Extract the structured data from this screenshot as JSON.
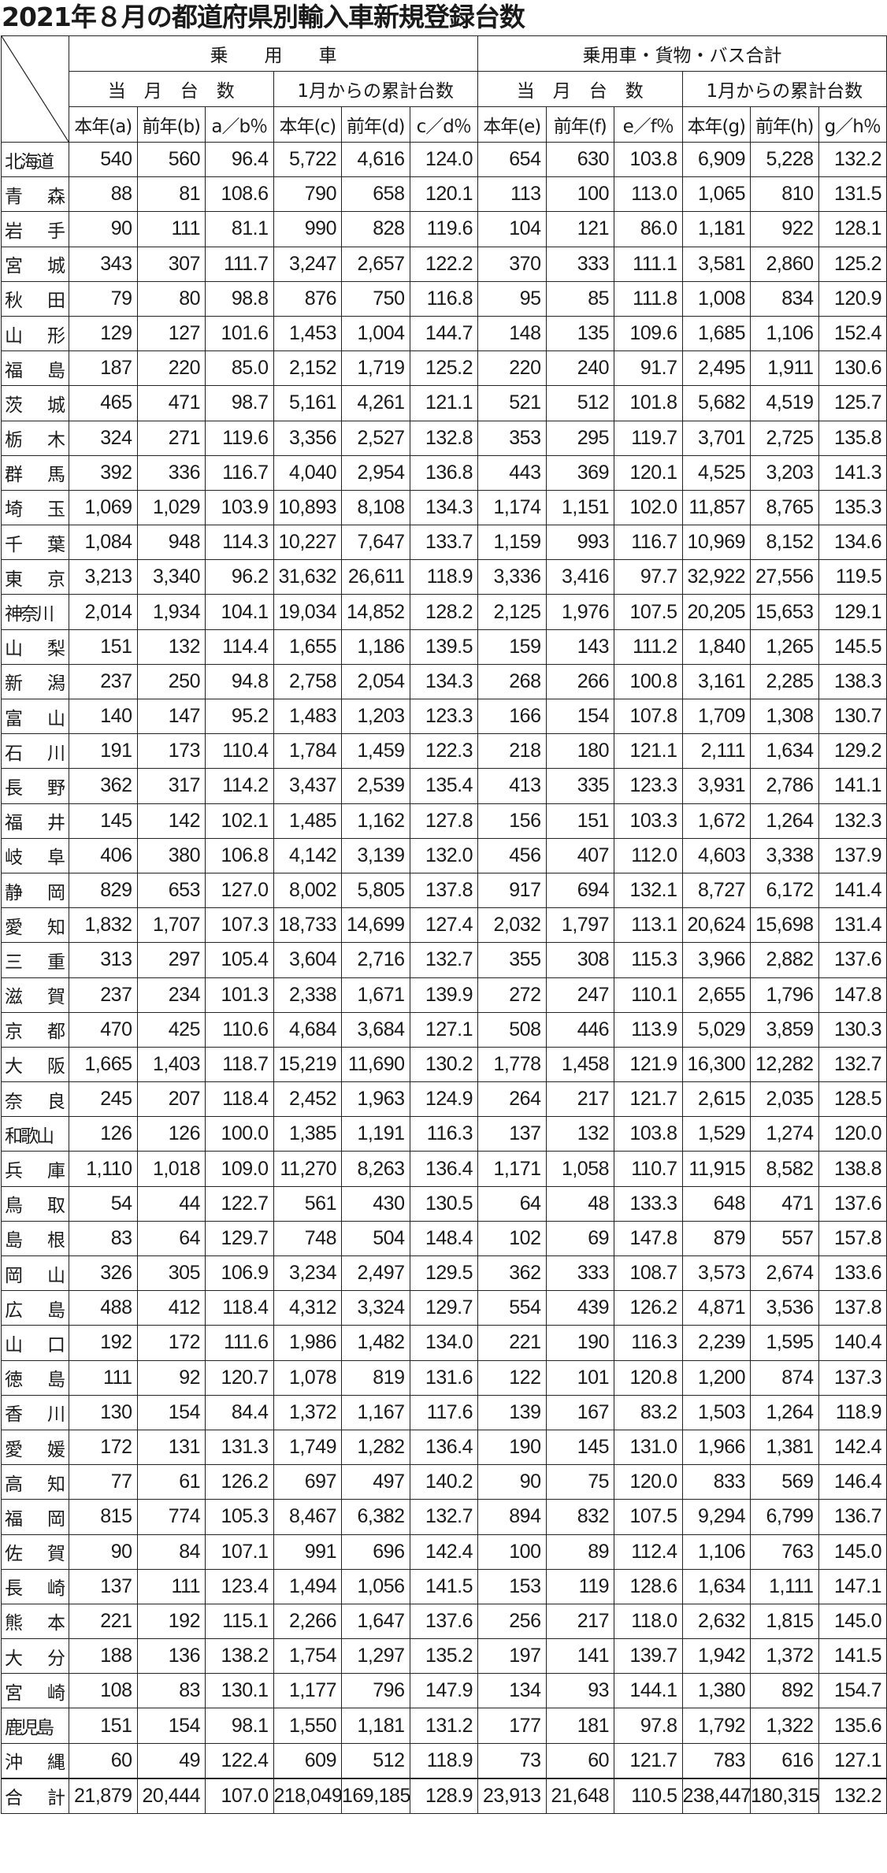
{
  "title": "2021年８月の都道府県別輸入車新規登録台数",
  "header": {
    "group1": "乗　　用　　車",
    "group2": "乗用車・貨物・バス合計",
    "sub_month": "当　月　台　数",
    "sub_cum": "1月からの累計台数",
    "columns": [
      "本年(a)",
      "前年(b)",
      "a／b％",
      "本年(c)",
      "前年(d)",
      "c／d％",
      "本年(e)",
      "前年(f)",
      "e／f％",
      "本年(g)",
      "前年(h)",
      "g／h％"
    ]
  },
  "rows": [
    [
      "北海道",
      "540",
      "560",
      "96.4",
      "5,722",
      "4,616",
      "124.0",
      "654",
      "630",
      "103.8",
      "6,909",
      "5,228",
      "132.2"
    ],
    [
      "青森",
      "88",
      "81",
      "108.6",
      "790",
      "658",
      "120.1",
      "113",
      "100",
      "113.0",
      "1,065",
      "810",
      "131.5"
    ],
    [
      "岩手",
      "90",
      "111",
      "81.1",
      "990",
      "828",
      "119.6",
      "104",
      "121",
      "86.0",
      "1,181",
      "922",
      "128.1"
    ],
    [
      "宮城",
      "343",
      "307",
      "111.7",
      "3,247",
      "2,657",
      "122.2",
      "370",
      "333",
      "111.1",
      "3,581",
      "2,860",
      "125.2"
    ],
    [
      "秋田",
      "79",
      "80",
      "98.8",
      "876",
      "750",
      "116.8",
      "95",
      "85",
      "111.8",
      "1,008",
      "834",
      "120.9"
    ],
    [
      "山形",
      "129",
      "127",
      "101.6",
      "1,453",
      "1,004",
      "144.7",
      "148",
      "135",
      "109.6",
      "1,685",
      "1,106",
      "152.4"
    ],
    [
      "福島",
      "187",
      "220",
      "85.0",
      "2,152",
      "1,719",
      "125.2",
      "220",
      "240",
      "91.7",
      "2,495",
      "1,911",
      "130.6"
    ],
    [
      "茨城",
      "465",
      "471",
      "98.7",
      "5,161",
      "4,261",
      "121.1",
      "521",
      "512",
      "101.8",
      "5,682",
      "4,519",
      "125.7"
    ],
    [
      "栃木",
      "324",
      "271",
      "119.6",
      "3,356",
      "2,527",
      "132.8",
      "353",
      "295",
      "119.7",
      "3,701",
      "2,725",
      "135.8"
    ],
    [
      "群馬",
      "392",
      "336",
      "116.7",
      "4,040",
      "2,954",
      "136.8",
      "443",
      "369",
      "120.1",
      "4,525",
      "3,203",
      "141.3"
    ],
    [
      "埼玉",
      "1,069",
      "1,029",
      "103.9",
      "10,893",
      "8,108",
      "134.3",
      "1,174",
      "1,151",
      "102.0",
      "11,857",
      "8,765",
      "135.3"
    ],
    [
      "千葉",
      "1,084",
      "948",
      "114.3",
      "10,227",
      "7,647",
      "133.7",
      "1,159",
      "993",
      "116.7",
      "10,969",
      "8,152",
      "134.6"
    ],
    [
      "東京",
      "3,213",
      "3,340",
      "96.2",
      "31,632",
      "26,611",
      "118.9",
      "3,336",
      "3,416",
      "97.7",
      "32,922",
      "27,556",
      "119.5"
    ],
    [
      "神奈川",
      "2,014",
      "1,934",
      "104.1",
      "19,034",
      "14,852",
      "128.2",
      "2,125",
      "1,976",
      "107.5",
      "20,205",
      "15,653",
      "129.1"
    ],
    [
      "山梨",
      "151",
      "132",
      "114.4",
      "1,655",
      "1,186",
      "139.5",
      "159",
      "143",
      "111.2",
      "1,840",
      "1,265",
      "145.5"
    ],
    [
      "新潟",
      "237",
      "250",
      "94.8",
      "2,758",
      "2,054",
      "134.3",
      "268",
      "266",
      "100.8",
      "3,161",
      "2,285",
      "138.3"
    ],
    [
      "富山",
      "140",
      "147",
      "95.2",
      "1,483",
      "1,203",
      "123.3",
      "166",
      "154",
      "107.8",
      "1,709",
      "1,308",
      "130.7"
    ],
    [
      "石川",
      "191",
      "173",
      "110.4",
      "1,784",
      "1,459",
      "122.3",
      "218",
      "180",
      "121.1",
      "2,111",
      "1,634",
      "129.2"
    ],
    [
      "長野",
      "362",
      "317",
      "114.2",
      "3,437",
      "2,539",
      "135.4",
      "413",
      "335",
      "123.3",
      "3,931",
      "2,786",
      "141.1"
    ],
    [
      "福井",
      "145",
      "142",
      "102.1",
      "1,485",
      "1,162",
      "127.8",
      "156",
      "151",
      "103.3",
      "1,672",
      "1,264",
      "132.3"
    ],
    [
      "岐阜",
      "406",
      "380",
      "106.8",
      "4,142",
      "3,139",
      "132.0",
      "456",
      "407",
      "112.0",
      "4,603",
      "3,338",
      "137.9"
    ],
    [
      "静岡",
      "829",
      "653",
      "127.0",
      "8,002",
      "5,805",
      "137.8",
      "917",
      "694",
      "132.1",
      "8,727",
      "6,172",
      "141.4"
    ],
    [
      "愛知",
      "1,832",
      "1,707",
      "107.3",
      "18,733",
      "14,699",
      "127.4",
      "2,032",
      "1,797",
      "113.1",
      "20,624",
      "15,698",
      "131.4"
    ],
    [
      "三重",
      "313",
      "297",
      "105.4",
      "3,604",
      "2,716",
      "132.7",
      "355",
      "308",
      "115.3",
      "3,966",
      "2,882",
      "137.6"
    ],
    [
      "滋賀",
      "237",
      "234",
      "101.3",
      "2,338",
      "1,671",
      "139.9",
      "272",
      "247",
      "110.1",
      "2,655",
      "1,796",
      "147.8"
    ],
    [
      "京都",
      "470",
      "425",
      "110.6",
      "4,684",
      "3,684",
      "127.1",
      "508",
      "446",
      "113.9",
      "5,029",
      "3,859",
      "130.3"
    ],
    [
      "大阪",
      "1,665",
      "1,403",
      "118.7",
      "15,219",
      "11,690",
      "130.2",
      "1,778",
      "1,458",
      "121.9",
      "16,300",
      "12,282",
      "132.7"
    ],
    [
      "奈良",
      "245",
      "207",
      "118.4",
      "2,452",
      "1,963",
      "124.9",
      "264",
      "217",
      "121.7",
      "2,615",
      "2,035",
      "128.5"
    ],
    [
      "和歌山",
      "126",
      "126",
      "100.0",
      "1,385",
      "1,191",
      "116.3",
      "137",
      "132",
      "103.8",
      "1,529",
      "1,274",
      "120.0"
    ],
    [
      "兵庫",
      "1,110",
      "1,018",
      "109.0",
      "11,270",
      "8,263",
      "136.4",
      "1,171",
      "1,058",
      "110.7",
      "11,915",
      "8,582",
      "138.8"
    ],
    [
      "鳥取",
      "54",
      "44",
      "122.7",
      "561",
      "430",
      "130.5",
      "64",
      "48",
      "133.3",
      "648",
      "471",
      "137.6"
    ],
    [
      "島根",
      "83",
      "64",
      "129.7",
      "748",
      "504",
      "148.4",
      "102",
      "69",
      "147.8",
      "879",
      "557",
      "157.8"
    ],
    [
      "岡山",
      "326",
      "305",
      "106.9",
      "3,234",
      "2,497",
      "129.5",
      "362",
      "333",
      "108.7",
      "3,573",
      "2,674",
      "133.6"
    ],
    [
      "広島",
      "488",
      "412",
      "118.4",
      "4,312",
      "3,324",
      "129.7",
      "554",
      "439",
      "126.2",
      "4,871",
      "3,536",
      "137.8"
    ],
    [
      "山口",
      "192",
      "172",
      "111.6",
      "1,986",
      "1,482",
      "134.0",
      "221",
      "190",
      "116.3",
      "2,239",
      "1,595",
      "140.4"
    ],
    [
      "徳島",
      "111",
      "92",
      "120.7",
      "1,078",
      "819",
      "131.6",
      "122",
      "101",
      "120.8",
      "1,200",
      "874",
      "137.3"
    ],
    [
      "香川",
      "130",
      "154",
      "84.4",
      "1,372",
      "1,167",
      "117.6",
      "139",
      "167",
      "83.2",
      "1,503",
      "1,264",
      "118.9"
    ],
    [
      "愛媛",
      "172",
      "131",
      "131.3",
      "1,749",
      "1,282",
      "136.4",
      "190",
      "145",
      "131.0",
      "1,966",
      "1,381",
      "142.4"
    ],
    [
      "高知",
      "77",
      "61",
      "126.2",
      "697",
      "497",
      "140.2",
      "90",
      "75",
      "120.0",
      "833",
      "569",
      "146.4"
    ],
    [
      "福岡",
      "815",
      "774",
      "105.3",
      "8,467",
      "6,382",
      "132.7",
      "894",
      "832",
      "107.5",
      "9,294",
      "6,799",
      "136.7"
    ],
    [
      "佐賀",
      "90",
      "84",
      "107.1",
      "991",
      "696",
      "142.4",
      "100",
      "89",
      "112.4",
      "1,106",
      "763",
      "145.0"
    ],
    [
      "長崎",
      "137",
      "111",
      "123.4",
      "1,494",
      "1,056",
      "141.5",
      "153",
      "119",
      "128.6",
      "1,634",
      "1,111",
      "147.1"
    ],
    [
      "熊本",
      "221",
      "192",
      "115.1",
      "2,266",
      "1,647",
      "137.6",
      "256",
      "217",
      "118.0",
      "2,632",
      "1,815",
      "145.0"
    ],
    [
      "大分",
      "188",
      "136",
      "138.2",
      "1,754",
      "1,297",
      "135.2",
      "197",
      "141",
      "139.7",
      "1,942",
      "1,372",
      "141.5"
    ],
    [
      "宮崎",
      "108",
      "83",
      "130.1",
      "1,177",
      "796",
      "147.9",
      "134",
      "93",
      "144.1",
      "1,380",
      "892",
      "154.7"
    ],
    [
      "鹿児島",
      "151",
      "154",
      "98.1",
      "1,550",
      "1,181",
      "131.2",
      "177",
      "181",
      "97.8",
      "1,792",
      "1,322",
      "135.6"
    ],
    [
      "沖縄",
      "60",
      "49",
      "122.4",
      "609",
      "512",
      "118.9",
      "73",
      "60",
      "121.7",
      "783",
      "616",
      "127.1"
    ]
  ],
  "total": [
    "合計",
    "21,879",
    "20,444",
    "107.0",
    "218,049",
    "169,185",
    "128.9",
    "23,913",
    "21,648",
    "110.5",
    "238,447",
    "180,315",
    "132.2"
  ]
}
